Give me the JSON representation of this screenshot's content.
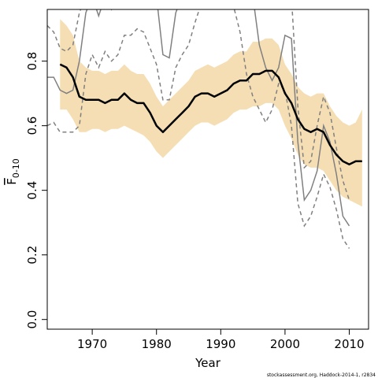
{
  "chart_data": {
    "type": "line",
    "title": "",
    "xlabel": "Year",
    "ylabel_main": "F",
    "ylabel_sub": "0-10",
    "xlim": [
      1963,
      2013
    ],
    "ylim": [
      -0.03,
      0.96
    ],
    "x_ticks": [
      1970,
      1980,
      1990,
      2000,
      2010
    ],
    "x_tick_labels": [
      "1970",
      "1980",
      "1990",
      "2000",
      "2010"
    ],
    "y_ticks": [
      0.0,
      0.2,
      0.4,
      0.6,
      0.8
    ],
    "y_tick_labels": [
      "0.0",
      "0.2",
      "0.4",
      "0.6",
      "0.8"
    ],
    "grid": false,
    "legend": "none",
    "credit": "stockassessment.org, Haddock-2014-1, r2834",
    "colors": {
      "band": "#f5deb3",
      "estimate": "#000000",
      "previous": "#808080"
    },
    "series": [
      {
        "role": "estimate",
        "x": [
          1965,
          1966,
          1967,
          1968,
          1969,
          1970,
          1971,
          1972,
          1973,
          1974,
          1975,
          1976,
          1977,
          1978,
          1979,
          1980,
          1981,
          1982,
          1983,
          1984,
          1985,
          1986,
          1987,
          1988,
          1989,
          1990,
          1991,
          1992,
          1993,
          1994,
          1995,
          1996,
          1997,
          1998,
          1999,
          2000,
          2001,
          2002,
          2003,
          2004,
          2005,
          2006,
          2007,
          2008,
          2009,
          2010,
          2011,
          2012
        ],
        "values": [
          0.79,
          0.78,
          0.75,
          0.69,
          0.68,
          0.68,
          0.68,
          0.67,
          0.68,
          0.68,
          0.7,
          0.68,
          0.67,
          0.67,
          0.64,
          0.6,
          0.58,
          0.6,
          0.62,
          0.64,
          0.66,
          0.69,
          0.7,
          0.7,
          0.69,
          0.7,
          0.71,
          0.73,
          0.74,
          0.74,
          0.76,
          0.76,
          0.77,
          0.77,
          0.75,
          0.7,
          0.67,
          0.62,
          0.59,
          0.58,
          0.59,
          0.58,
          0.54,
          0.51,
          0.49,
          0.48,
          0.49,
          0.49
        ]
      },
      {
        "role": "confidence_lower",
        "x": [
          1965,
          1966,
          1967,
          1968,
          1969,
          1970,
          1971,
          1972,
          1973,
          1974,
          1975,
          1976,
          1977,
          1978,
          1979,
          1980,
          1981,
          1982,
          1983,
          1984,
          1985,
          1986,
          1987,
          1988,
          1989,
          1990,
          1991,
          1992,
          1993,
          1994,
          1995,
          1996,
          1997,
          1998,
          1999,
          2000,
          2001,
          2002,
          2003,
          2004,
          2005,
          2006,
          2007,
          2008,
          2009,
          2010,
          2011,
          2012
        ],
        "values": [
          0.65,
          0.65,
          0.62,
          0.58,
          0.58,
          0.59,
          0.59,
          0.58,
          0.59,
          0.59,
          0.6,
          0.59,
          0.58,
          0.57,
          0.55,
          0.52,
          0.5,
          0.52,
          0.54,
          0.56,
          0.58,
          0.6,
          0.61,
          0.61,
          0.6,
          0.61,
          0.62,
          0.64,
          0.65,
          0.65,
          0.66,
          0.66,
          0.67,
          0.67,
          0.65,
          0.6,
          0.56,
          0.51,
          0.48,
          0.47,
          0.47,
          0.46,
          0.43,
          0.4,
          0.38,
          0.37,
          0.36,
          0.35
        ]
      },
      {
        "role": "confidence_upper",
        "x": [
          1965,
          1966,
          1967,
          1968,
          1969,
          1970,
          1971,
          1972,
          1973,
          1974,
          1975,
          1976,
          1977,
          1978,
          1979,
          1980,
          1981,
          1982,
          1983,
          1984,
          1985,
          1986,
          1987,
          1988,
          1989,
          1990,
          1991,
          1992,
          1993,
          1994,
          1995,
          1996,
          1997,
          1998,
          1999,
          2000,
          2001,
          2002,
          2003,
          2004,
          2005,
          2006,
          2007,
          2008,
          2009,
          2010,
          2011,
          2012
        ],
        "values": [
          0.93,
          0.91,
          0.88,
          0.8,
          0.78,
          0.77,
          0.77,
          0.76,
          0.77,
          0.77,
          0.79,
          0.77,
          0.76,
          0.76,
          0.73,
          0.69,
          0.66,
          0.68,
          0.7,
          0.72,
          0.74,
          0.77,
          0.78,
          0.79,
          0.78,
          0.79,
          0.8,
          0.82,
          0.83,
          0.83,
          0.86,
          0.86,
          0.87,
          0.87,
          0.85,
          0.79,
          0.76,
          0.72,
          0.7,
          0.69,
          0.7,
          0.7,
          0.66,
          0.63,
          0.61,
          0.6,
          0.61,
          0.65
        ]
      },
      {
        "role": "previous_estimate_solid",
        "x": [
          1963,
          1964,
          1965,
          1966,
          1967,
          1968,
          1969,
          1970,
          1971,
          1972,
          1973,
          1974,
          1975,
          1976,
          1977,
          1978,
          1979,
          1980,
          1981,
          1982,
          1983,
          1984,
          1985,
          1986,
          1987,
          1988,
          1989,
          1990,
          1991,
          1992,
          1993,
          1994,
          1995,
          1996,
          1997,
          1998,
          1999,
          2000,
          2001,
          2002,
          2003,
          2004,
          2005,
          2006,
          2007,
          2008,
          2009,
          2010
        ],
        "values": [
          0.75,
          0.75,
          0.71,
          0.7,
          0.71,
          0.8,
          0.95,
          1.0,
          0.94,
          1.0,
          0.96,
          1.0,
          1.0,
          1.0,
          1.0,
          1.0,
          1.0,
          1.0,
          0.82,
          0.81,
          0.95,
          1.0,
          1.0,
          1.0,
          1.0,
          1.0,
          1.0,
          1.0,
          1.0,
          1.0,
          1.0,
          1.0,
          1.0,
          0.85,
          0.78,
          0.74,
          0.78,
          0.88,
          0.87,
          0.55,
          0.37,
          0.4,
          0.46,
          0.6,
          0.55,
          0.45,
          0.32,
          0.29
        ]
      },
      {
        "role": "previous_interval_upper",
        "x": [
          1963,
          1964,
          1965,
          1966,
          1967,
          1968,
          1969,
          1970,
          1971,
          1972,
          1973,
          1974,
          1975,
          1976,
          1977,
          1978,
          1979,
          1980,
          1981,
          1982,
          1983,
          1984,
          1985,
          1986,
          1987,
          1988,
          1989,
          1990,
          1991,
          1992,
          1993,
          1994,
          1995,
          1996,
          1997,
          1998,
          1999,
          2000,
          2001,
          2002,
          2003,
          2004,
          2005,
          2006,
          2007,
          2008,
          2009,
          2010
        ],
        "values": [
          0.91,
          0.89,
          0.84,
          0.83,
          0.85,
          0.95,
          1.0,
          1.0,
          1.0,
          1.0,
          1.0,
          1.0,
          1.0,
          1.0,
          1.0,
          1.0,
          1.0,
          1.0,
          1.0,
          0.97,
          1.0,
          1.0,
          1.0,
          1.0,
          1.0,
          1.0,
          1.0,
          1.0,
          1.0,
          1.0,
          1.0,
          1.0,
          1.0,
          1.0,
          1.0,
          1.0,
          0.96,
          1.0,
          1.0,
          0.66,
          0.47,
          0.49,
          0.6,
          0.69,
          0.64,
          0.53,
          0.43,
          0.37
        ]
      },
      {
        "role": "previous_interval_lower",
        "x": [
          1963,
          1964,
          1965,
          1966,
          1967,
          1968,
          1969,
          1970,
          1971,
          1972,
          1973,
          1974,
          1975,
          1976,
          1977,
          1978,
          1979,
          1980,
          1981,
          1982,
          1983,
          1984,
          1985,
          1986,
          1987,
          1988,
          1989,
          1990,
          1991,
          1992,
          1993,
          1994,
          1995,
          1996,
          1997,
          1998,
          1999,
          2000,
          2001,
          2002,
          2003,
          2004,
          2005,
          2006,
          2007,
          2008,
          2009,
          2010
        ],
        "values": [
          0.6,
          0.61,
          0.58,
          0.58,
          0.58,
          0.6,
          0.76,
          0.82,
          0.78,
          0.83,
          0.8,
          0.82,
          0.88,
          0.88,
          0.9,
          0.89,
          0.84,
          0.79,
          0.68,
          0.68,
          0.78,
          0.82,
          0.85,
          0.92,
          0.98,
          1.0,
          1.0,
          1.0,
          1.0,
          0.97,
          0.89,
          0.76,
          0.69,
          0.65,
          0.61,
          0.65,
          0.73,
          0.71,
          0.6,
          0.36,
          0.29,
          0.32,
          0.38,
          0.45,
          0.41,
          0.34,
          0.25,
          0.22
        ]
      }
    ]
  }
}
